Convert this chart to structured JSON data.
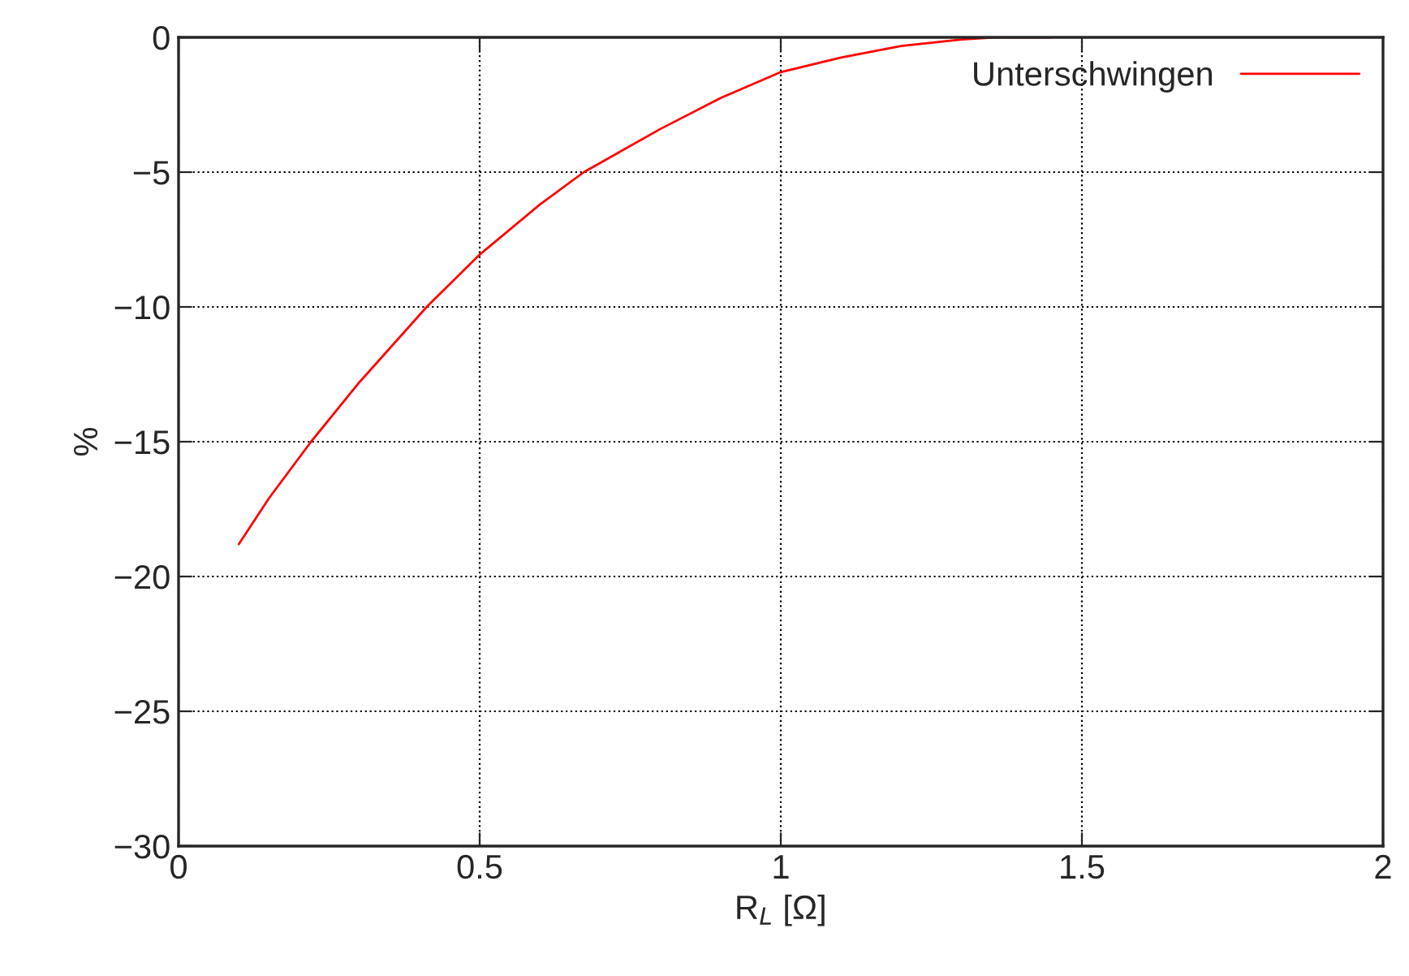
{
  "chart_data": {
    "type": "line",
    "xlabel": "R$_{L}$ [Ω]",
    "ylabel": "%",
    "x": [
      0.1,
      0.15,
      0.22,
      0.3,
      0.412,
      0.5,
      0.6,
      0.673,
      0.8,
      0.9,
      1.0,
      1.1,
      1.2,
      1.3,
      1.355,
      1.45
    ],
    "series": [
      {
        "name": "Unterschwingen",
        "color": "#ff0000",
        "values": [
          -18.8,
          -17.1,
          -15,
          -12.8,
          -10,
          -8.06,
          -6.2,
          -5,
          -3.4,
          -2.25,
          -1.29,
          -0.75,
          -0.32,
          -0.08,
          0,
          0
        ]
      }
    ],
    "xlim": [
      0,
      2
    ],
    "ylim": [
      -30,
      0
    ],
    "xticks": [
      0,
      0.5,
      1,
      1.5,
      2
    ],
    "yticks": [
      {
        "value": -30,
        "label": "−30"
      },
      {
        "value": -25,
        "label": "−25"
      },
      {
        "value": -20,
        "label": "−20"
      },
      {
        "value": -15,
        "label": "−15"
      },
      {
        "value": -10,
        "label": "−10"
      },
      {
        "value": -5,
        "label": "−5"
      },
      0
    ],
    "grid": true,
    "legend": "top right",
    "line_style": "solid",
    "marker": "none"
  }
}
